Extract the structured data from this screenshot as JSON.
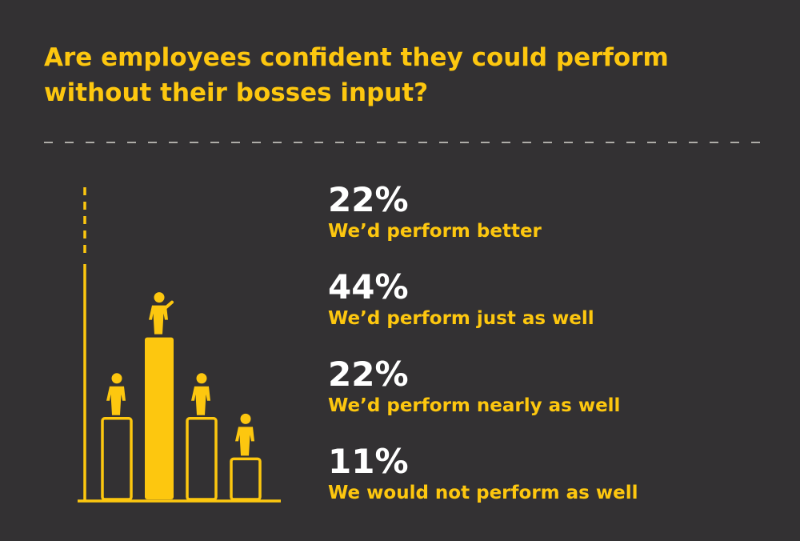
{
  "title_lines": [
    "Are employees confident they could perform",
    "without their bosses input?"
  ],
  "colors": {
    "background": "#333133",
    "accent": "#fdc70f",
    "value_text": "#ffffff"
  },
  "icons": {
    "figure": "person-icon"
  },
  "stats": [
    {
      "value": "22%",
      "label": "We’d perform better"
    },
    {
      "value": "44%",
      "label": "We’d perform just as well"
    },
    {
      "value": "22%",
      "label": "We’d perform nearly as well"
    },
    {
      "value": "11%",
      "label": "We would not perform as well"
    }
  ],
  "chart_data": {
    "type": "bar",
    "categories": [
      "We’d perform better",
      "We’d perform just as well",
      "We’d perform nearly as well",
      "We would not perform as well"
    ],
    "values": [
      22,
      44,
      22,
      11
    ],
    "value_labels": [
      "22%",
      "44%",
      "22%",
      "11%"
    ],
    "highlighted_index": 1,
    "ylim": [
      0,
      100
    ],
    "grid": false,
    "legend": "right"
  }
}
